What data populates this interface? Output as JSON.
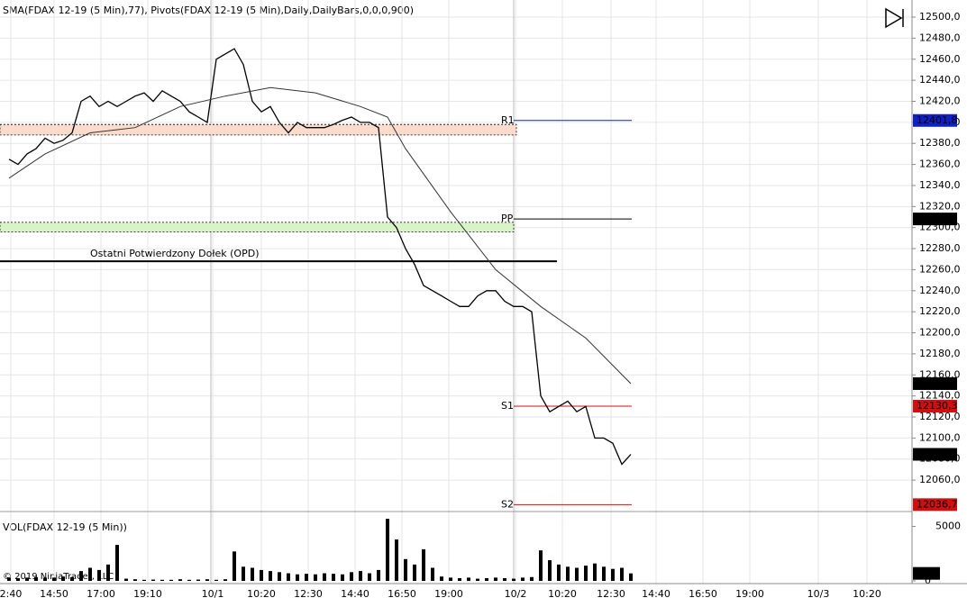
{
  "chart_data": [
    {
      "type": "line",
      "title": "SMA(FDAX 12-19 (5 Min),77), Pivots(FDAX 12-19 (5 Min),Daily,DailyBars,0,0,0,900)",
      "xlim": [
        0,
        506
      ],
      "xticks": [
        {
          "value": 6,
          "label": "2:40"
        },
        {
          "value": 30,
          "label": "14:50"
        },
        {
          "value": 56,
          "label": "17:00"
        },
        {
          "value": 82,
          "label": "19:10"
        },
        {
          "value": 118,
          "label": "10/1"
        },
        {
          "value": 145,
          "label": "10:20"
        },
        {
          "value": 171,
          "label": "12:30"
        },
        {
          "value": 197,
          "label": "14:40"
        },
        {
          "value": 223,
          "label": "16:50"
        },
        {
          "value": 249,
          "label": "19:00"
        },
        {
          "value": 286,
          "label": "10/2"
        },
        {
          "value": 312,
          "label": "10:20"
        },
        {
          "value": 339,
          "label": "12:30"
        },
        {
          "value": 364,
          "label": "14:40"
        },
        {
          "value": 390,
          "label": "16:50"
        },
        {
          "value": 416,
          "label": "19:00"
        },
        {
          "value": 454,
          "label": "10/3"
        },
        {
          "value": 481,
          "label": "10:20"
        }
      ],
      "ylim": [
        12031,
        12512
      ],
      "yticks": [
        {
          "value": 12060,
          "label": "12060,0"
        },
        {
          "value": 12080,
          "label": "12080,0"
        },
        {
          "value": 12100,
          "label": "12100,0"
        },
        {
          "value": 12120,
          "label": "12120,0"
        },
        {
          "value": 12140,
          "label": "12140,0"
        },
        {
          "value": 12160,
          "label": "12160,0"
        },
        {
          "value": 12180,
          "label": "12180,0"
        },
        {
          "value": 12200,
          "label": "12200,0"
        },
        {
          "value": 12220,
          "label": "12220,0"
        },
        {
          "value": 12240,
          "label": "12240,0"
        },
        {
          "value": 12260,
          "label": "12260,0"
        },
        {
          "value": 12280,
          "label": "12280,0"
        },
        {
          "value": 12300,
          "label": "12300,0"
        },
        {
          "value": 12320,
          "label": "12320,0"
        },
        {
          "value": 12340,
          "label": "12340,0"
        },
        {
          "value": 12360,
          "label": "12360,0"
        },
        {
          "value": 12380,
          "label": "12380,0"
        },
        {
          "value": 12400,
          "label": "12400,0"
        },
        {
          "value": 12420,
          "label": "12420,0"
        },
        {
          "value": 12440,
          "label": "12440,0"
        },
        {
          "value": 12460,
          "label": "12460,0"
        },
        {
          "value": 12480,
          "label": "12480,0"
        },
        {
          "value": 12500,
          "label": "12500,0"
        }
      ],
      "grid": true,
      "series": [
        {
          "name": "FDAX 12-19",
          "color": "#000000",
          "x": [
            5,
            10,
            15,
            20,
            25,
            30,
            35,
            40,
            45,
            50,
            55,
            60,
            65,
            70,
            75,
            80,
            85,
            90,
            95,
            100,
            105,
            110,
            115,
            120,
            125,
            130,
            135,
            140,
            145,
            150,
            155,
            160,
            165,
            170,
            175,
            180,
            185,
            190,
            195,
            200,
            205,
            210,
            215,
            220,
            225,
            230,
            235,
            240,
            245,
            250,
            255,
            260,
            265,
            270,
            275,
            280,
            285,
            290,
            295,
            300,
            305,
            310,
            315,
            320,
            325,
            330,
            335,
            340,
            345,
            350
          ],
          "values": [
            12365,
            12360,
            12370,
            12375,
            12385,
            12380,
            12383,
            12390,
            12420,
            12425,
            12415,
            12420,
            12415,
            12420,
            12425,
            12428,
            12420,
            12430,
            12425,
            12420,
            12410,
            12405,
            12400,
            12460,
            12465,
            12470,
            12455,
            12420,
            12410,
            12415,
            12400,
            12390,
            12400,
            12395,
            12395,
            12395,
            12398,
            12402,
            12405,
            12400,
            12400,
            12395,
            12310,
            12300,
            12280,
            12265,
            12245,
            12240,
            12235,
            12230,
            12225,
            12225,
            12235,
            12240,
            12240,
            12230,
            12225,
            12225,
            12220,
            12140,
            12125,
            12130,
            12135,
            12125,
            12130,
            12100,
            12100,
            12095,
            12075,
            12084.5
          ],
          "last_label": "12084,5"
        },
        {
          "name": "SMA",
          "color": "#333333",
          "x": [
            5,
            25,
            50,
            75,
            100,
            125,
            150,
            175,
            200,
            215,
            225,
            250,
            275,
            300,
            325,
            350
          ],
          "values": [
            12347,
            12370,
            12390,
            12395,
            12415,
            12425,
            12433,
            12428,
            12415,
            12405,
            12375,
            12315,
            12260,
            12225,
            12195,
            12151.7
          ],
          "last_label": "12151,7"
        }
      ],
      "levels": [
        {
          "name": "R1",
          "value": 12401.8,
          "value_label": "12401,8",
          "color": "#1020c0"
        },
        {
          "name": "PP",
          "value": 12308.2,
          "value_label": "12308,2",
          "color": "#000000"
        },
        {
          "name": "S1",
          "value": 12130.3,
          "value_label": "12130,3",
          "color": "#d01010"
        },
        {
          "name": "S2",
          "value": 12036.7,
          "value_label": "12036,7",
          "color": "#d01010"
        }
      ],
      "zones": [
        {
          "low": 12388,
          "high": 12398,
          "color": "#fbdccc"
        },
        {
          "low": 12296,
          "high": 12305,
          "color": "#d8f3c8"
        }
      ],
      "lines": [
        {
          "label": "Ostatni Potwierdzony Dołek (OPD)",
          "value": 12268
        }
      ]
    },
    {
      "type": "bar",
      "title": "VOL(FDAX 12-19 (5 Min))",
      "note": "© 2019 NinjaTrader, LLC",
      "color": "#000000",
      "xlim": [
        0,
        506
      ],
      "x": [
        5,
        10,
        15,
        20,
        25,
        30,
        35,
        40,
        45,
        50,
        55,
        60,
        65,
        70,
        75,
        80,
        85,
        90,
        95,
        100,
        105,
        110,
        115,
        120,
        125,
        130,
        135,
        140,
        145,
        150,
        155,
        160,
        165,
        170,
        175,
        180,
        185,
        190,
        195,
        200,
        205,
        210,
        215,
        220,
        225,
        230,
        235,
        240,
        245,
        250,
        255,
        260,
        265,
        270,
        275,
        280,
        285,
        290,
        295,
        300,
        305,
        310,
        315,
        320,
        325,
        330,
        335,
        340,
        345,
        350
      ],
      "values": [
        300,
        250,
        300,
        350,
        300,
        300,
        400,
        350,
        900,
        1200,
        1000,
        1500,
        3300,
        200,
        150,
        100,
        120,
        100,
        100,
        150,
        100,
        120,
        150,
        100,
        150,
        2700,
        1300,
        1200,
        1000,
        900,
        800,
        700,
        600,
        650,
        600,
        700,
        650,
        600,
        800,
        900,
        700,
        1000,
        5700,
        3800,
        2000,
        1500,
        2900,
        1200,
        400,
        300,
        250,
        300,
        200,
        250,
        300,
        250,
        200,
        300,
        350,
        2800,
        1900,
        1500,
        1300,
        1200,
        1400,
        1600,
        1300,
        1100,
        1200,
        688
      ],
      "ylim": [
        0,
        6200
      ],
      "yticks": [
        0,
        5000
      ]
    }
  ]
}
